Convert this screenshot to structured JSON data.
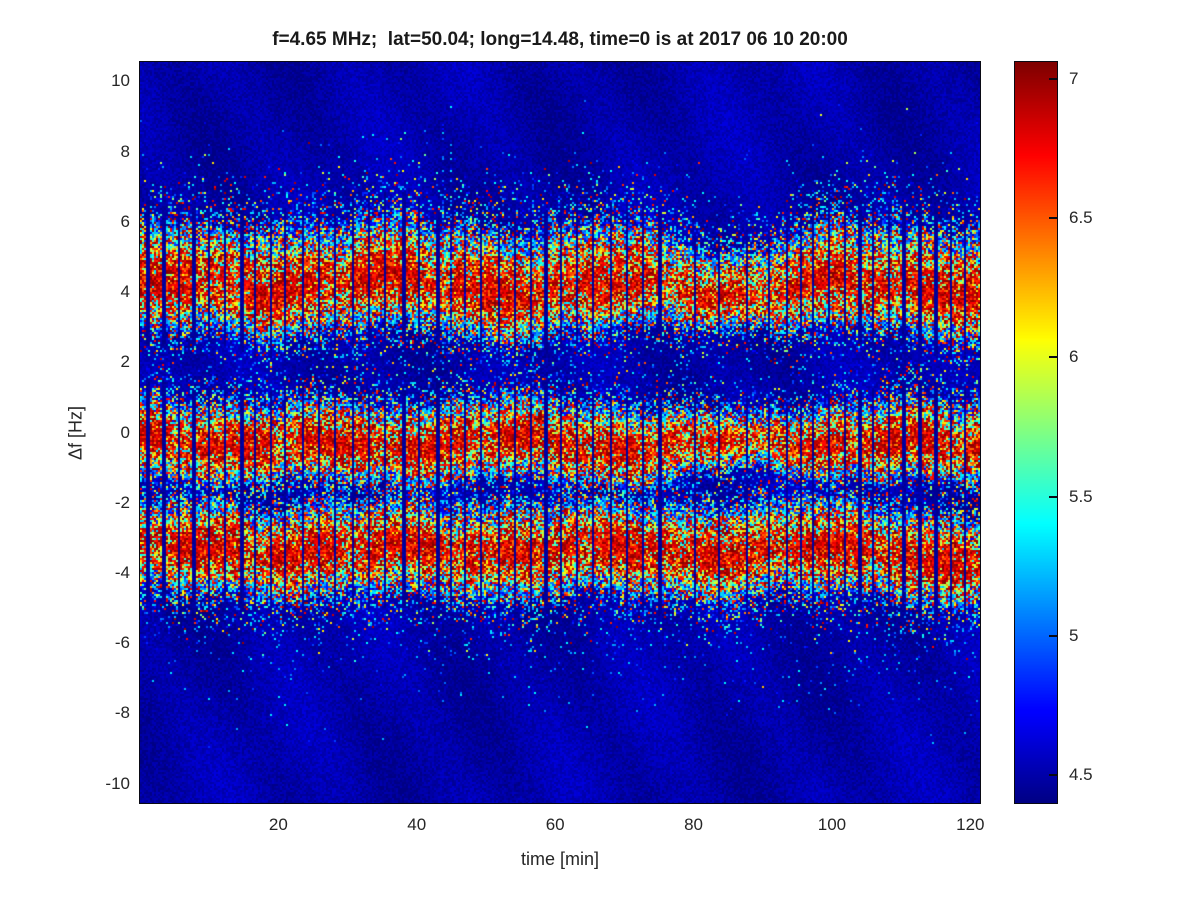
{
  "chart_data": {
    "type": "heatmap",
    "title": "f=4.65 MHz;  lat=50.04; long=14.48, time=0 is at 2017 06 10 20:00",
    "xlabel": "time [min]",
    "ylabel": "Δf [Hz]",
    "x_ticks": [
      20,
      40,
      60,
      80,
      100,
      120
    ],
    "y_ticks": [
      10,
      8,
      6,
      4,
      2,
      0,
      -2,
      -4,
      -6,
      -8,
      -10
    ],
    "xlim": [
      0,
      121.4
    ],
    "ylim": [
      -10.55,
      10.55
    ],
    "colormap": "jet",
    "clim": [
      4.4,
      7.06
    ],
    "colorbar_ticks": [
      7,
      6.5,
      6,
      5.5,
      5,
      4.5
    ],
    "background_level": 4.42,
    "grid": {
      "cols": 420,
      "rows": 371,
      "seed": 20170610
    },
    "description": "Doppler-shift spectrogram: three noisy emission bands centered near +4.2 Hz, -0.3 Hz and -3.4 Hz persisting over 0-121 min, speckled jet-colormap texture on a dark blue background with periodic thin vertical dropout stripes and a few faint tall blue streaks (strongest near t=44 min).",
    "bands": [
      {
        "label": "upper band ~ +4.2 Hz",
        "center": 4.15,
        "wobble": [
          {
            "amp": 0.2,
            "period": 33,
            "phase": 0.8
          },
          {
            "amp": 0.1,
            "period": 12.5,
            "phase": 2.0
          },
          {
            "amp": 0.07,
            "period": 55,
            "phase": 4.4
          }
        ],
        "dip": {
          "t": 84,
          "amp": -0.18,
          "sigma": 10
        },
        "narrow": {
          "t": 84,
          "amount": 0.28,
          "sigma": 9
        },
        "width_up": 1.35,
        "width_down": 1.0,
        "shape": 1.7,
        "texture": [
          {
            "amp": 0.15,
            "period": 16,
            "phase": 0.3
          },
          {
            "amp": 0.1,
            "period": 6.8,
            "phase": 3.1
          }
        ]
      },
      {
        "label": "middle band ~ -0.3 Hz",
        "center": -0.32,
        "wobble": [
          {
            "amp": 0.14,
            "period": 29,
            "phase": 2.2
          },
          {
            "amp": 0.08,
            "period": 47,
            "phase": 1.0
          },
          {
            "amp": 0.06,
            "period": 11,
            "phase": 0.5
          }
        ],
        "dip": {
          "t": 0,
          "amp": 0,
          "sigma": 1
        },
        "narrow": {
          "t": 88,
          "amount": 0.3,
          "sigma": 10
        },
        "width_up": 0.95,
        "width_down": 0.85,
        "shape": 1.7,
        "texture": [
          {
            "amp": 0.13,
            "period": 14,
            "phase": 1.7
          },
          {
            "amp": 0.09,
            "period": 7.5,
            "phase": 0.2
          }
        ]
      },
      {
        "label": "lower band ~ -3.4 Hz",
        "center": -3.35,
        "wobble": [
          {
            "amp": 0.15,
            "period": 31,
            "phase": 0.6
          },
          {
            "amp": 0.09,
            "period": 13,
            "phase": 1.5
          }
        ],
        "dip": {
          "t": 119,
          "amp": -0.4,
          "sigma": 5
        },
        "narrow": {
          "t": 0,
          "amount": 0,
          "sigma": 1
        },
        "width_up": 1.05,
        "width_down": 1.0,
        "shape": 1.7,
        "texture": [
          {
            "amp": 0.14,
            "period": 15,
            "phase": 4.0
          },
          {
            "amp": 0.09,
            "period": 7,
            "phase": 2.5
          }
        ]
      }
    ],
    "stripes": {
      "segments": [
        {
          "start": 1.0,
          "end": 76.5,
          "spacing": 2.3
        },
        {
          "start": 80.0,
          "end": 91.0,
          "spacing": 3.6
        },
        {
          "start": 93.5,
          "end": 120.6,
          "spacing": 2.05
        }
      ],
      "jitter": 0.5
    },
    "streaks": [
      {
        "t": 24.8,
        "fmin": 1.0,
        "fmax": 7.6,
        "p": 0.3
      },
      {
        "t": 31.2,
        "fmin": 1.5,
        "fmax": 6.8,
        "p": 0.2
      },
      {
        "t": 43.6,
        "fmin": 1.8,
        "fmax": 8.8,
        "p": 0.38
      },
      {
        "t": 44.7,
        "fmin": -0.8,
        "fmax": 8.2,
        "p": 0.3
      },
      {
        "t": 46.9,
        "fmin": 1.5,
        "fmax": 7.5,
        "p": 0.22
      },
      {
        "t": 52.3,
        "fmin": 1.0,
        "fmax": 7.0,
        "p": 0.18
      },
      {
        "t": 56.6,
        "fmin": 0.8,
        "fmax": 7.2,
        "p": 0.2
      },
      {
        "t": 62.1,
        "fmin": 1.5,
        "fmax": 6.9,
        "p": 0.18
      },
      {
        "t": 25.6,
        "fmin": -6.6,
        "fmax": -1.8,
        "p": 0.26
      },
      {
        "t": 8.2,
        "fmin": -6.2,
        "fmax": -2.5,
        "p": 0.2
      },
      {
        "t": 4.1,
        "fmin": -5.8,
        "fmax": 2.0,
        "p": 0.15
      },
      {
        "t": 110.4,
        "fmin": -5.6,
        "fmax": -2.0,
        "p": 0.16
      },
      {
        "t": 75.3,
        "fmin": -5.2,
        "fmax": -2.2,
        "p": 0.15
      }
    ]
  }
}
